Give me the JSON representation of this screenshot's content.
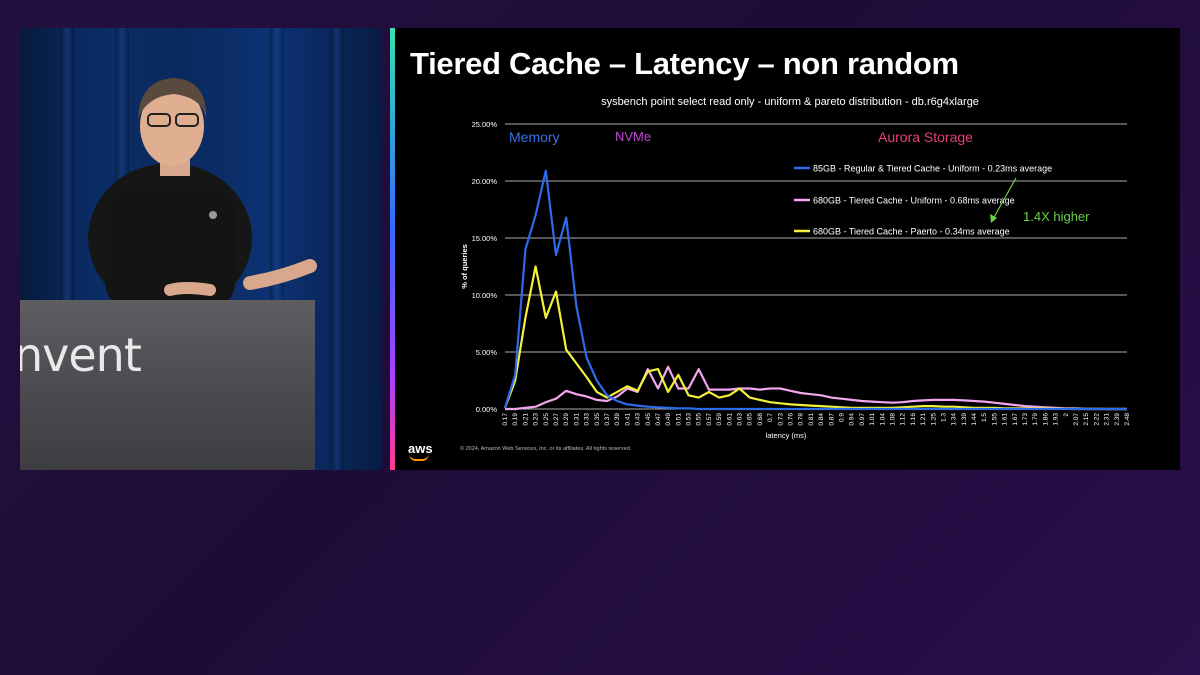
{
  "speaker": {
    "podium_text": "nvent"
  },
  "slide": {
    "title": "Tiered Cache – Latency – non random",
    "brand": "aws",
    "copyright": "© 2024, Amazon Web Services, Inc. or its affiliates. All rights reserved."
  },
  "chart_data": {
    "type": "line",
    "title": "sysbench point select read only - uniform & pareto distribution - db.r6g4xlarge",
    "xlabel": "latency (ms)",
    "ylabel": "% of queries",
    "ylim": [
      0,
      25
    ],
    "y_ticks": [
      0,
      5,
      10,
      15,
      20,
      25
    ],
    "y_tick_labels": [
      "0.00%",
      "5.00%",
      "10.00%",
      "15.00%",
      "20.00%",
      "25.00%"
    ],
    "grid": "horizontal",
    "legend_placement": "top-right",
    "x": [
      "0.17",
      "0.19",
      "0.21",
      "0.23",
      "0.25",
      "0.27",
      "0.29",
      "0.31",
      "0.33",
      "0.35",
      "0.37",
      "0.39",
      "0.41",
      "0.43",
      "0.45",
      "0.47",
      "0.49",
      "0.51",
      "0.53",
      "0.55",
      "0.57",
      "0.59",
      "0.61",
      "0.63",
      "0.65",
      "0.68",
      "0.7",
      "0.73",
      "0.76",
      "0.78",
      "0.81",
      "0.84",
      "0.87",
      "0.9",
      "0.94",
      "0.97",
      "1.01",
      "1.04",
      "1.08",
      "1.12",
      "1.16",
      "1.21",
      "1.25",
      "1.3",
      "1.34",
      "1.39",
      "1.44",
      "1.5",
      "1.55",
      "1.61",
      "1.67",
      "1.73",
      "1.79",
      "1.86",
      "1.93",
      "2",
      "2.07",
      "2.15",
      "2.22",
      "2.31",
      "2.39",
      "2.48"
    ],
    "series": [
      {
        "name": "85GB - Regular & Tiered Cache - Uniform  - 0.23ms average",
        "color": "#2d6bea",
        "values": [
          0.1,
          3,
          14,
          17,
          20.9,
          13.5,
          16.8,
          9,
          4.5,
          2.5,
          1.2,
          0.7,
          0.4,
          0.3,
          0.2,
          0.15,
          0.1,
          0.05,
          0.05,
          0,
          0,
          0,
          0,
          0,
          0,
          0,
          0,
          0,
          0,
          0,
          0,
          0,
          0,
          0,
          0,
          0,
          0,
          0,
          0,
          0,
          0,
          0,
          0,
          0,
          0,
          0,
          0,
          0,
          0,
          0,
          0,
          0,
          0,
          0,
          0,
          0,
          0,
          0,
          0,
          0,
          0,
          0
        ]
      },
      {
        "name": "680GB - Tiered Cache - Uniform - 0.68ms average",
        "color": "#f2a6ee",
        "values": [
          0,
          0,
          0.1,
          0.2,
          0.6,
          0.9,
          1.6,
          1.3,
          1.1,
          0.8,
          0.7,
          1.1,
          1.8,
          1.5,
          3.5,
          1.8,
          3.7,
          1.8,
          1.8,
          3.5,
          1.7,
          1.7,
          1.7,
          1.8,
          1.8,
          1.7,
          1.8,
          1.8,
          1.6,
          1.4,
          1.3,
          1.2,
          1.0,
          0.9,
          0.8,
          0.7,
          0.65,
          0.6,
          0.55,
          0.6,
          0.7,
          0.75,
          0.8,
          0.8,
          0.8,
          0.75,
          0.7,
          0.65,
          0.55,
          0.45,
          0.35,
          0.25,
          0.2,
          0.15,
          0.1,
          0.05,
          0.05,
          0.02,
          0.01,
          0,
          0,
          0
        ]
      },
      {
        "name": "680GB - Tiered Cache - Paerto - 0.34ms average",
        "color": "#f2f23a",
        "values": [
          0.1,
          2.5,
          8,
          12.5,
          8,
          10.3,
          5.2,
          4,
          2.8,
          1.5,
          1,
          1.5,
          2,
          1.6,
          3.3,
          3.5,
          1.5,
          3,
          1.2,
          1,
          1.5,
          1,
          1.2,
          1.8,
          1,
          0.8,
          0.6,
          0.5,
          0.4,
          0.35,
          0.3,
          0.25,
          0.2,
          0.15,
          0.1,
          0.1,
          0.1,
          0.1,
          0.1,
          0.15,
          0.2,
          0.25,
          0.25,
          0.2,
          0.2,
          0.15,
          0.1,
          0.1,
          0.1,
          0.05,
          0.05,
          0.05,
          0.05,
          0.05,
          0.02,
          0.01,
          0,
          0,
          0,
          0,
          0,
          0
        ]
      }
    ],
    "annotations": [
      {
        "text": "Memory",
        "color": "#3a73e8"
      },
      {
        "text": "NVMe",
        "color": "#c245d8"
      },
      {
        "text": "Aurora Storage",
        "color": "#e53e7e"
      },
      {
        "text": "1.4X higher",
        "color": "#6ccf4a"
      }
    ]
  }
}
